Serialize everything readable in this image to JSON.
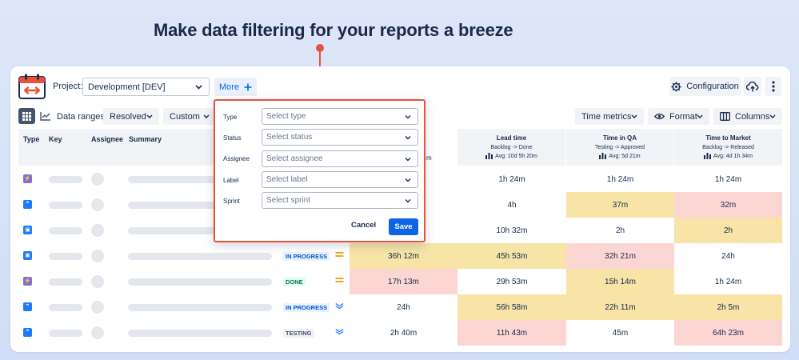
{
  "headline": "Make data filtering for your reports a breeze",
  "colors": {
    "accent": "#e5533a",
    "primary": "#0c66e4",
    "red_cell": "#fcd6d2",
    "yellow_cell": "#f7e4a6"
  },
  "toolbar": {
    "project_label": "Project:",
    "project_value": "Development [DEV]",
    "more_label": "More",
    "configuration_label": "Configuration",
    "data_ranges_label": "Data ranges:",
    "resolved_label": "Resolved",
    "custom_label": "Custom",
    "time_metrics_label": "Time metrics",
    "format_label": "Format",
    "columns_label": "Columns"
  },
  "table": {
    "headers": {
      "type": "Type",
      "key": "Key",
      "assignee": "Assignee",
      "summary": "Summary"
    },
    "partial_text": "m",
    "metrics": [
      {
        "title": "Lead time",
        "sub": "Backlog -> Done",
        "avg": "Avg: 10d 5h 20m"
      },
      {
        "title": "Time in QA",
        "sub": "Testing -> Approved",
        "avg": "Avg: 5d 21m"
      },
      {
        "title": "Time to Market",
        "sub": "Backlog -> Released",
        "avg": "Avg: 4d 1h 34m"
      }
    ],
    "rows": [
      {
        "type": "subtask",
        "status": "",
        "priority": "",
        "v1": "",
        "v2": "1h 24m",
        "v3": "1h 24m",
        "v4": "1h 24m",
        "c1": "",
        "c2": "",
        "c3": "",
        "c4": ""
      },
      {
        "type": "story",
        "status": "",
        "priority": "",
        "v1": "",
        "v2": "4h",
        "v3": "37m",
        "v4": "32m",
        "c1": "",
        "c2": "",
        "c3": "yellow",
        "c4": "red"
      },
      {
        "type": "task",
        "status": "",
        "priority": "",
        "v1": "",
        "v2": "10h 32m",
        "v3": "2h",
        "v4": "2h",
        "c1": "",
        "c2": "",
        "c3": "",
        "c4": "yellow"
      },
      {
        "type": "task",
        "status": "IN PROGRESS",
        "priority": "medium",
        "v1": "36h 12m",
        "v2": "45h 53m",
        "v3": "32h 21m",
        "v4": "24h",
        "c1": "yellow",
        "c2": "yellow",
        "c3": "red",
        "c4": ""
      },
      {
        "type": "subtask",
        "status": "DONE",
        "priority": "medium",
        "v1": "17h 13m",
        "v2": "29h 53m",
        "v3": "15h 14m",
        "v4": "1h 24m",
        "c1": "red",
        "c2": "",
        "c3": "yellow",
        "c4": ""
      },
      {
        "type": "story",
        "status": "IN PROGRESS",
        "priority": "low",
        "v1": "24h",
        "v2": "56h 58m",
        "v3": "22h 11m",
        "v4": "2h 5m",
        "c1": "",
        "c2": "yellow",
        "c3": "yellow",
        "c4": "yellow"
      },
      {
        "type": "story",
        "status": "TESTING",
        "priority": "low",
        "v1": "2h 40m",
        "v2": "11h 43m",
        "v3": "45m",
        "v4": "64h 23m",
        "c1": "",
        "c2": "red",
        "c3": "",
        "c4": "red"
      }
    ]
  },
  "filter_popup": {
    "fields": [
      {
        "label": "Type",
        "placeholder": "Select type"
      },
      {
        "label": "Status",
        "placeholder": "Select status"
      },
      {
        "label": "Assignee",
        "placeholder": "Select assignee"
      },
      {
        "label": "Label",
        "placeholder": "Select label"
      },
      {
        "label": "Sprint",
        "placeholder": "Select sprint"
      }
    ],
    "cancel_label": "Cancel",
    "save_label": "Save"
  }
}
